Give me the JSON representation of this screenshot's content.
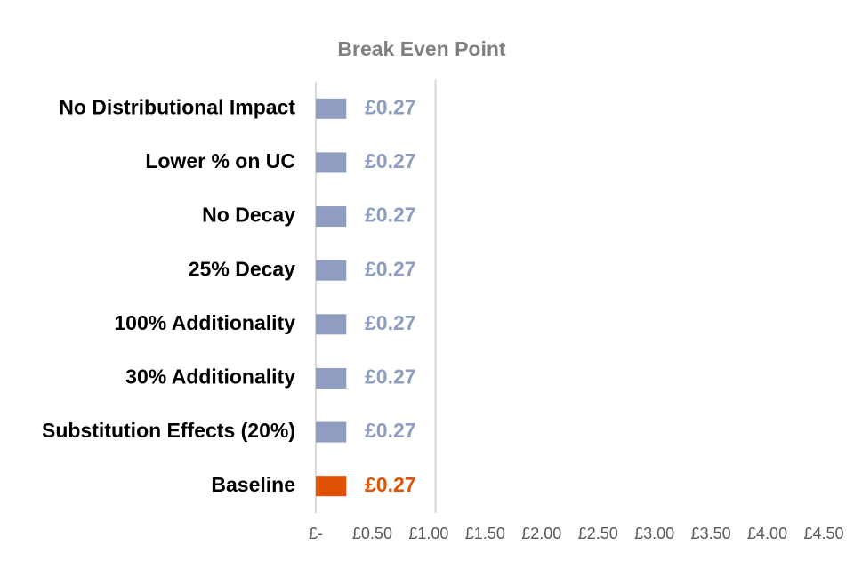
{
  "chart_data": {
    "type": "hbar",
    "title": "Break Even Point",
    "categories": [
      "No Distributional Impact",
      "Lower % on UC",
      "No Decay",
      "25% Decay",
      "100% Additionality",
      "30% Additionality",
      "Substitution Effects (20%)",
      "Baseline"
    ],
    "values": [
      0.27,
      0.27,
      0.27,
      0.27,
      0.27,
      0.27,
      0.27,
      0.27
    ],
    "value_labels": [
      "£0.27",
      "£0.27",
      "£0.27",
      "£0.27",
      "£0.27",
      "£0.27",
      "£0.27",
      "£0.27"
    ],
    "colors": [
      "#8e9dc0",
      "#8e9dc0",
      "#8e9dc0",
      "#8e9dc0",
      "#8e9dc0",
      "#8e9dc0",
      "#8e9dc0",
      "#e05206"
    ],
    "xlim": [
      0,
      4.5
    ],
    "xticks": [
      {
        "value": 0,
        "label": "£-"
      },
      {
        "value": 0.5,
        "label": "£0.50"
      },
      {
        "value": 1,
        "label": "£1.00"
      },
      {
        "value": 1.5,
        "label": "£1.50"
      },
      {
        "value": 2,
        "label": "£2.00"
      },
      {
        "value": 2.5,
        "label": "£2.50"
      },
      {
        "value": 3,
        "label": "£3.00"
      },
      {
        "value": 3.5,
        "label": "£3.50"
      },
      {
        "value": 4,
        "label": "£4.00"
      },
      {
        "value": 4.5,
        "label": "£4.50"
      }
    ],
    "reference_line": 1.06,
    "grid": false
  }
}
